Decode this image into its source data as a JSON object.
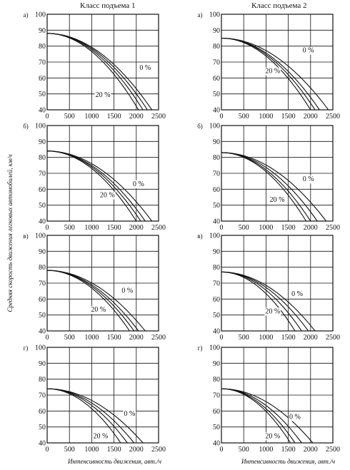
{
  "columns": [
    "Класс подъема 1",
    "Класс подъема 2"
  ],
  "xlabel": "Интенсивность движения, авт./ч",
  "ylabel": "Средняя скорость движения легковых автомобилей, км/ч",
  "colors": {
    "grid": "#111111",
    "curve": "#111111",
    "background": "#ffffff"
  },
  "chart_data": [
    {
      "type": "line",
      "panel": "а)",
      "column": 1,
      "xlim": [
        0,
        2500
      ],
      "ylim": [
        40,
        100
      ],
      "xticks": [
        0,
        500,
        1000,
        1500,
        2000,
        2500
      ],
      "yticks": [
        40,
        50,
        60,
        70,
        80,
        90,
        100
      ],
      "grid": true,
      "v0": 88,
      "ends": [
        2050,
        2150,
        2250,
        2350
      ],
      "annotations": [
        {
          "text": "0 %",
          "x": 2200,
          "y": 65
        },
        {
          "text": "20 %",
          "x": 1250,
          "y": 48
        }
      ]
    },
    {
      "type": "line",
      "panel": "а)",
      "column": 2,
      "xlim": [
        0,
        2500
      ],
      "ylim": [
        40,
        100
      ],
      "xticks": [
        0,
        500,
        1000,
        1500,
        2000,
        2500
      ],
      "yticks": [
        40,
        50,
        60,
        70,
        80,
        90,
        100
      ],
      "grid": true,
      "v0": 85,
      "ends": [
        2000,
        2100,
        2200,
        2400
      ],
      "annotations": [
        {
          "text": "0 %",
          "x": 1950,
          "y": 76
        },
        {
          "text": "20 %",
          "x": 1150,
          "y": 63
        }
      ]
    },
    {
      "type": "line",
      "panel": "б)",
      "column": 1,
      "xlim": [
        0,
        2500
      ],
      "ylim": [
        40,
        100
      ],
      "xticks": [
        0,
        500,
        1000,
        1500,
        2000,
        2500
      ],
      "yticks": [
        40,
        50,
        60,
        70,
        80,
        90,
        100
      ],
      "grid": true,
      "v0": 84,
      "ends": [
        2000,
        2100,
        2200,
        2350
      ],
      "annotations": [
        {
          "text": "0 %",
          "x": 2050,
          "y": 62
        },
        {
          "text": "20 %",
          "x": 1350,
          "y": 55
        }
      ]
    },
    {
      "type": "line",
      "panel": "б)",
      "column": 2,
      "xlim": [
        0,
        2500
      ],
      "ylim": [
        40,
        100
      ],
      "xticks": [
        0,
        500,
        1000,
        1500,
        2000,
        2500
      ],
      "yticks": [
        40,
        50,
        60,
        70,
        80,
        90,
        100
      ],
      "grid": true,
      "v0": 83,
      "ends": [
        1900,
        2000,
        2150,
        2350
      ],
      "annotations": [
        {
          "text": "0 %",
          "x": 1950,
          "y": 65
        },
        {
          "text": "20 %",
          "x": 1250,
          "y": 52
        }
      ]
    },
    {
      "type": "line",
      "panel": "в)",
      "column": 1,
      "xlim": [
        0,
        2500
      ],
      "ylim": [
        40,
        100
      ],
      "xticks": [
        0,
        500,
        1000,
        1500,
        2000,
        2500
      ],
      "yticks": [
        40,
        50,
        60,
        70,
        80,
        90,
        100
      ],
      "grid": true,
      "v0": 78,
      "ends": [
        1850,
        1950,
        2050,
        2200
      ],
      "annotations": [
        {
          "text": "0 %",
          "x": 1800,
          "y": 64
        },
        {
          "text": "20 %",
          "x": 1150,
          "y": 52
        }
      ]
    },
    {
      "type": "line",
      "panel": "в)",
      "column": 2,
      "xlim": [
        0,
        2500
      ],
      "ylim": [
        40,
        100
      ],
      "xticks": [
        0,
        500,
        1000,
        1500,
        2000,
        2500
      ],
      "yticks": [
        40,
        50,
        60,
        70,
        80,
        90,
        100
      ],
      "grid": true,
      "v0": 77,
      "ends": [
        1650,
        1800,
        1950,
        2100
      ],
      "annotations": [
        {
          "text": "0 %",
          "x": 1700,
          "y": 62
        },
        {
          "text": "20 %",
          "x": 1150,
          "y": 51
        }
      ]
    },
    {
      "type": "line",
      "panel": "г)",
      "column": 1,
      "xlim": [
        0,
        2500
      ],
      "ylim": [
        40,
        100
      ],
      "xticks": [
        0,
        500,
        1000,
        1500,
        2000,
        2500
      ],
      "yticks": [
        40,
        50,
        60,
        70,
        80,
        90,
        100
      ],
      "grid": true,
      "v0": 74,
      "ends": [
        1650,
        1800,
        1950,
        2150
      ],
      "annotations": [
        {
          "text": "0 %",
          "x": 1850,
          "y": 57
        },
        {
          "text": "20 %",
          "x": 1200,
          "y": 43
        }
      ]
    },
    {
      "type": "line",
      "panel": "г)",
      "column": 2,
      "xlim": [
        0,
        2500
      ],
      "ylim": [
        40,
        100
      ],
      "xticks": [
        0,
        500,
        1000,
        1500,
        2000,
        2500
      ],
      "yticks": [
        40,
        50,
        60,
        70,
        80,
        90,
        100
      ],
      "grid": true,
      "v0": 74,
      "ends": [
        1550,
        1650,
        1800,
        2050
      ],
      "annotations": [
        {
          "text": "0 %",
          "x": 1650,
          "y": 55
        },
        {
          "text": "20 %",
          "x": 1150,
          "y": 43
        }
      ]
    }
  ]
}
